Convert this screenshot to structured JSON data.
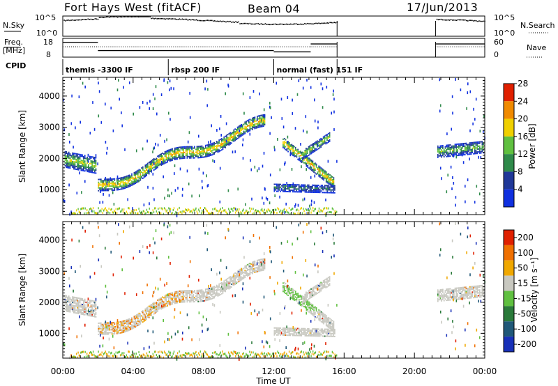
{
  "header": {
    "station": "Fort Hays West (fitACF)",
    "beam": "Beam 04",
    "date": "17/Jun/2013"
  },
  "strip_labels": {
    "nsky": "N.Sky",
    "nsearch": "N.Search",
    "freq_line1": "Freq.",
    "freq_line2": "[MHz]",
    "nave": "Nave",
    "cpid": "CPID",
    "noise_ticks": [
      "10^5",
      "10^0"
    ],
    "freq_ticks": [
      "18",
      "8"
    ],
    "nave_ticks": [
      "60",
      "0"
    ]
  },
  "cpid_segments": [
    {
      "start": 0.0,
      "end": 6.0,
      "label": "themis -3300 IF"
    },
    {
      "start": 6.0,
      "end": 12.0,
      "label": "rbsp 200 IF"
    },
    {
      "start": 12.0,
      "end": 15.6,
      "label": "normal (fast) 151 IF"
    }
  ],
  "time_axis": {
    "label": "Time UT",
    "ticks": [
      "00:00",
      "04:00",
      "08:00",
      "12:00",
      "16:00",
      "20:00",
      "00:00"
    ],
    "tick_hours": [
      0,
      4,
      8,
      12,
      16,
      20,
      24
    ]
  },
  "range_axis": {
    "label": "Slant Range [km]",
    "ticks": [
      "1000",
      "2000",
      "3000",
      "4000"
    ],
    "tick_values": [
      1000,
      2000,
      3000,
      4000
    ],
    "range": [
      200,
      4600
    ]
  },
  "power_scale": {
    "label": "Power [dB]",
    "ticks": [
      "4",
      "8",
      "12",
      "16",
      "20",
      "24",
      "28"
    ],
    "colors": [
      "#1030e0",
      "#203898",
      "#2f8a4a",
      "#60c040",
      "#f0d000",
      "#f08a00",
      "#e02000"
    ]
  },
  "velocity_scale": {
    "label": "Velocity [m s⁻¹]",
    "ticks": [
      "200",
      "100",
      "50",
      "15",
      "-15",
      "-50",
      "-100",
      "-200"
    ],
    "colors": [
      "#1830b8",
      "#205878",
      "#2a7a3a",
      "#60c040",
      "#c8c8c0",
      "#f0a800",
      "#f07000",
      "#e02000"
    ]
  },
  "chart_data": {
    "type": "heatmap",
    "x_units": "hours UT",
    "xlim": [
      0,
      24
    ],
    "ylim": [
      200,
      4600
    ],
    "data_gap": [
      15.6,
      21.2
    ],
    "echo_bands": [
      {
        "name": "early band",
        "start": 0.1,
        "end": 1.9,
        "range_start": 1950,
        "range_end": 1750,
        "width": 500,
        "power_center": 14
      },
      {
        "name": "main ascending band",
        "start": 2.0,
        "end": 11.5,
        "range_start": 1050,
        "range_end": 3100,
        "width": 380,
        "power_center": 18
      },
      {
        "name": "post-noon band",
        "start": 12.5,
        "end": 15.4,
        "range_start": 2500,
        "range_end": 1200,
        "width": 350,
        "power_center": 18
      },
      {
        "name": "upper post-noon band",
        "start": 13.6,
        "end": 15.2,
        "range_start": 2100,
        "range_end": 2700,
        "width": 300,
        "power_center": 14
      },
      {
        "name": "low post-noon band",
        "start": 12.0,
        "end": 15.5,
        "range_start": 1050,
        "range_end": 1000,
        "width": 250,
        "power_center": 8
      },
      {
        "name": "late band",
        "start": 21.3,
        "end": 23.9,
        "range_start": 2200,
        "range_end": 2350,
        "width": 380,
        "power_center": 12
      }
    ]
  }
}
